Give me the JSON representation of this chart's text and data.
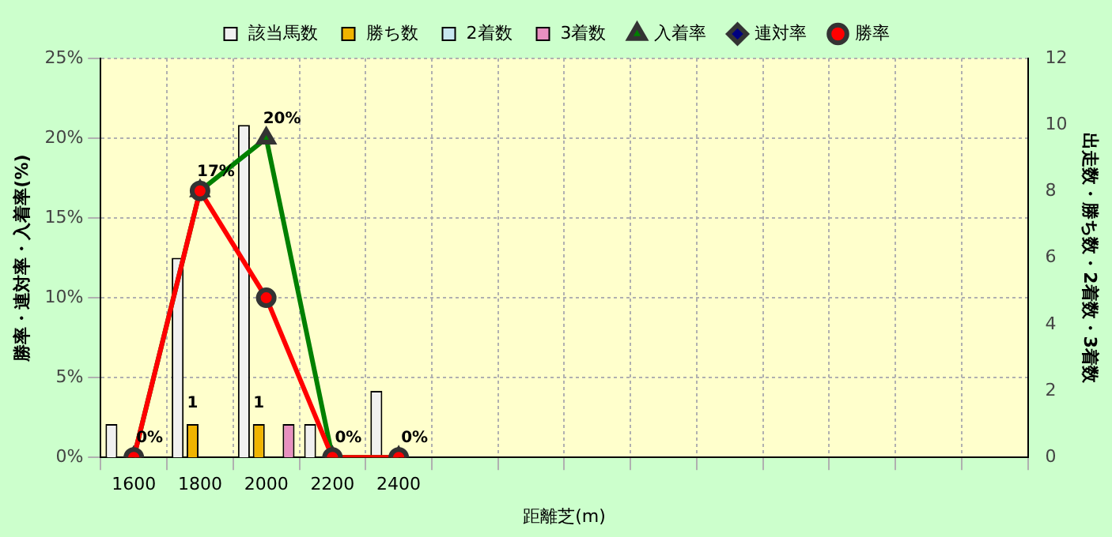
{
  "chart_data": {
    "type": "bar",
    "categories": [
      "1600",
      "1800",
      "2000",
      "2200",
      "2400",
      null,
      null,
      null,
      null,
      null,
      null,
      null,
      null,
      null
    ],
    "series": [
      {
        "name": "該当馬数",
        "axis": "y2",
        "color": "#f0f0f0",
        "values": [
          1,
          6,
          10,
          1,
          2,
          null,
          null,
          null,
          null,
          null,
          null,
          null,
          null,
          null
        ]
      },
      {
        "name": "勝ち数",
        "axis": "y2",
        "color": "#f0b400",
        "values": [
          0,
          1,
          1,
          0,
          0,
          null,
          null,
          null,
          null,
          null,
          null,
          null,
          null,
          null
        ],
        "value_labels": [
          null,
          "1",
          "1",
          null,
          null,
          null,
          null,
          null,
          null,
          null,
          null,
          null,
          null,
          null
        ]
      },
      {
        "name": "2着数",
        "axis": "y2",
        "color": "#c8e8f0",
        "values": [
          0,
          0,
          0,
          0,
          0,
          null,
          null,
          null,
          null,
          null,
          null,
          null,
          null,
          null
        ]
      },
      {
        "name": "3着数",
        "axis": "y2",
        "color": "#e890c0",
        "values": [
          0,
          0,
          1,
          0,
          0,
          null,
          null,
          null,
          null,
          null,
          null,
          null,
          null,
          null
        ]
      },
      {
        "name": "入着率",
        "type": "line",
        "color": "#008000",
        "marker": "triangle",
        "values": [
          0,
          16.7,
          20,
          0,
          0,
          null,
          null,
          null,
          null,
          null,
          null,
          null,
          null,
          null
        ],
        "value_labels": [
          "0%",
          "17%",
          "20%",
          "0%",
          "0%",
          null,
          null,
          null,
          null,
          null,
          null,
          null,
          null,
          null
        ]
      },
      {
        "name": "連対率",
        "type": "line",
        "color": "#000080",
        "marker": "diamond",
        "values": [
          null,
          null,
          null,
          null,
          null,
          null,
          null,
          null,
          null,
          null,
          null,
          null,
          null,
          null
        ]
      },
      {
        "name": "勝率",
        "type": "line",
        "color": "#ff0000",
        "marker": "circle",
        "values": [
          0,
          16.7,
          10,
          0,
          0,
          null,
          null,
          null,
          null,
          null,
          null,
          null,
          null,
          null
        ]
      }
    ],
    "xlabel": "距離芝(m)",
    "ylabel": "勝率・連対率・入着率(%)",
    "y2label": "出走数・勝ち数・2着数・3着数",
    "ylim": [
      0,
      25
    ],
    "yticks": [
      {
        "value": 0,
        "label": "0%"
      },
      {
        "value": 5,
        "label": "5%"
      },
      {
        "value": 10,
        "label": "10%"
      },
      {
        "value": 15,
        "label": "15%"
      },
      {
        "value": 20,
        "label": "20%"
      },
      {
        "value": 25,
        "label": "25%"
      }
    ],
    "y2lim": [
      0,
      12
    ],
    "y2ticks": [
      0,
      2,
      4,
      6,
      8,
      10,
      12
    ],
    "grid": true,
    "legend": "top"
  }
}
